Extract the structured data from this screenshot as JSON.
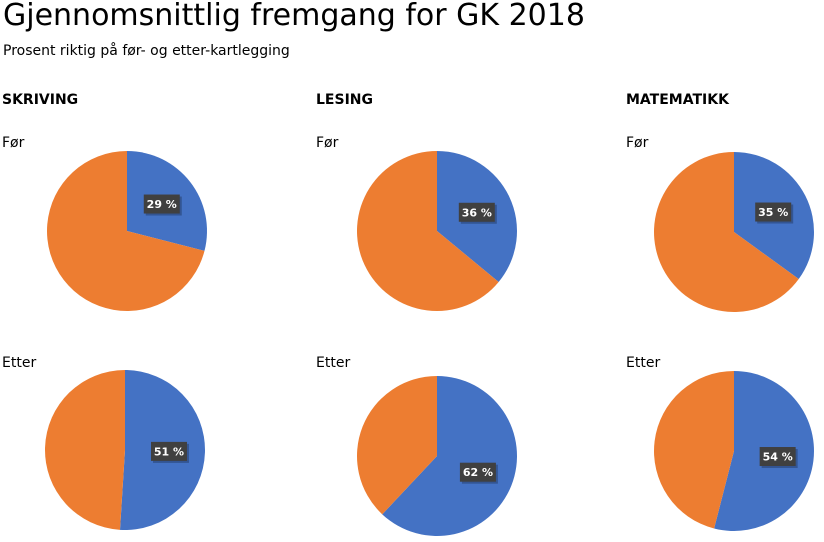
{
  "header": {
    "title": "Gjennomsnittlig fremgang for GK 2018",
    "subtitle": "Prosent riktig på før- og etter-kartlegging"
  },
  "colors": {
    "correct": "#4472c4",
    "remaining": "#ed7d31",
    "label_bg": "#404040"
  },
  "chart_data": [
    {
      "type": "pie",
      "group": "SKRIVING",
      "row": "Før",
      "slices": [
        {
          "value": 29,
          "color": "#4472c4",
          "label": "29 %"
        },
        {
          "value": 71,
          "color": "#ed7d31"
        }
      ]
    },
    {
      "type": "pie",
      "group": "SKRIVING",
      "row": "Etter",
      "slices": [
        {
          "value": 51,
          "color": "#4472c4",
          "label": "51 %"
        },
        {
          "value": 49,
          "color": "#ed7d31"
        }
      ]
    },
    {
      "type": "pie",
      "group": "LESING",
      "row": "Før",
      "slices": [
        {
          "value": 36,
          "color": "#4472c4",
          "label": "36 %"
        },
        {
          "value": 64,
          "color": "#ed7d31"
        }
      ]
    },
    {
      "type": "pie",
      "group": "LESING",
      "row": "Etter",
      "slices": [
        {
          "value": 62,
          "color": "#4472c4",
          "label": "62 %"
        },
        {
          "value": 38,
          "color": "#ed7d31"
        }
      ]
    },
    {
      "type": "pie",
      "group": "MATEMATIKK",
      "row": "Før",
      "slices": [
        {
          "value": 35,
          "color": "#4472c4",
          "label": "35 %"
        },
        {
          "value": 65,
          "color": "#ed7d31"
        }
      ]
    },
    {
      "type": "pie",
      "group": "MATEMATIKK",
      "row": "Etter",
      "slices": [
        {
          "value": 54,
          "color": "#4472c4",
          "label": "54 %"
        },
        {
          "value": 46,
          "color": "#ed7d31"
        }
      ]
    }
  ]
}
